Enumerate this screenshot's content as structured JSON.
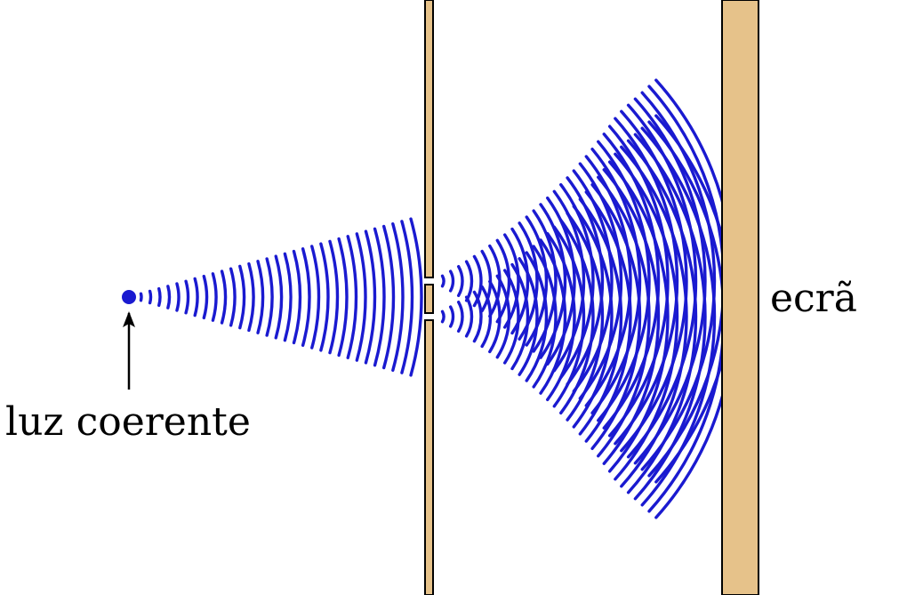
{
  "labels": {
    "source": "luz coerente",
    "screen": "ecrã"
  },
  "colors": {
    "wave": "#1a1ad0",
    "barrier": "#e6c28a",
    "outline": "#000000",
    "background": "#ffffff"
  },
  "icons": [
    "point-source-icon",
    "arrow-up-icon"
  ]
}
